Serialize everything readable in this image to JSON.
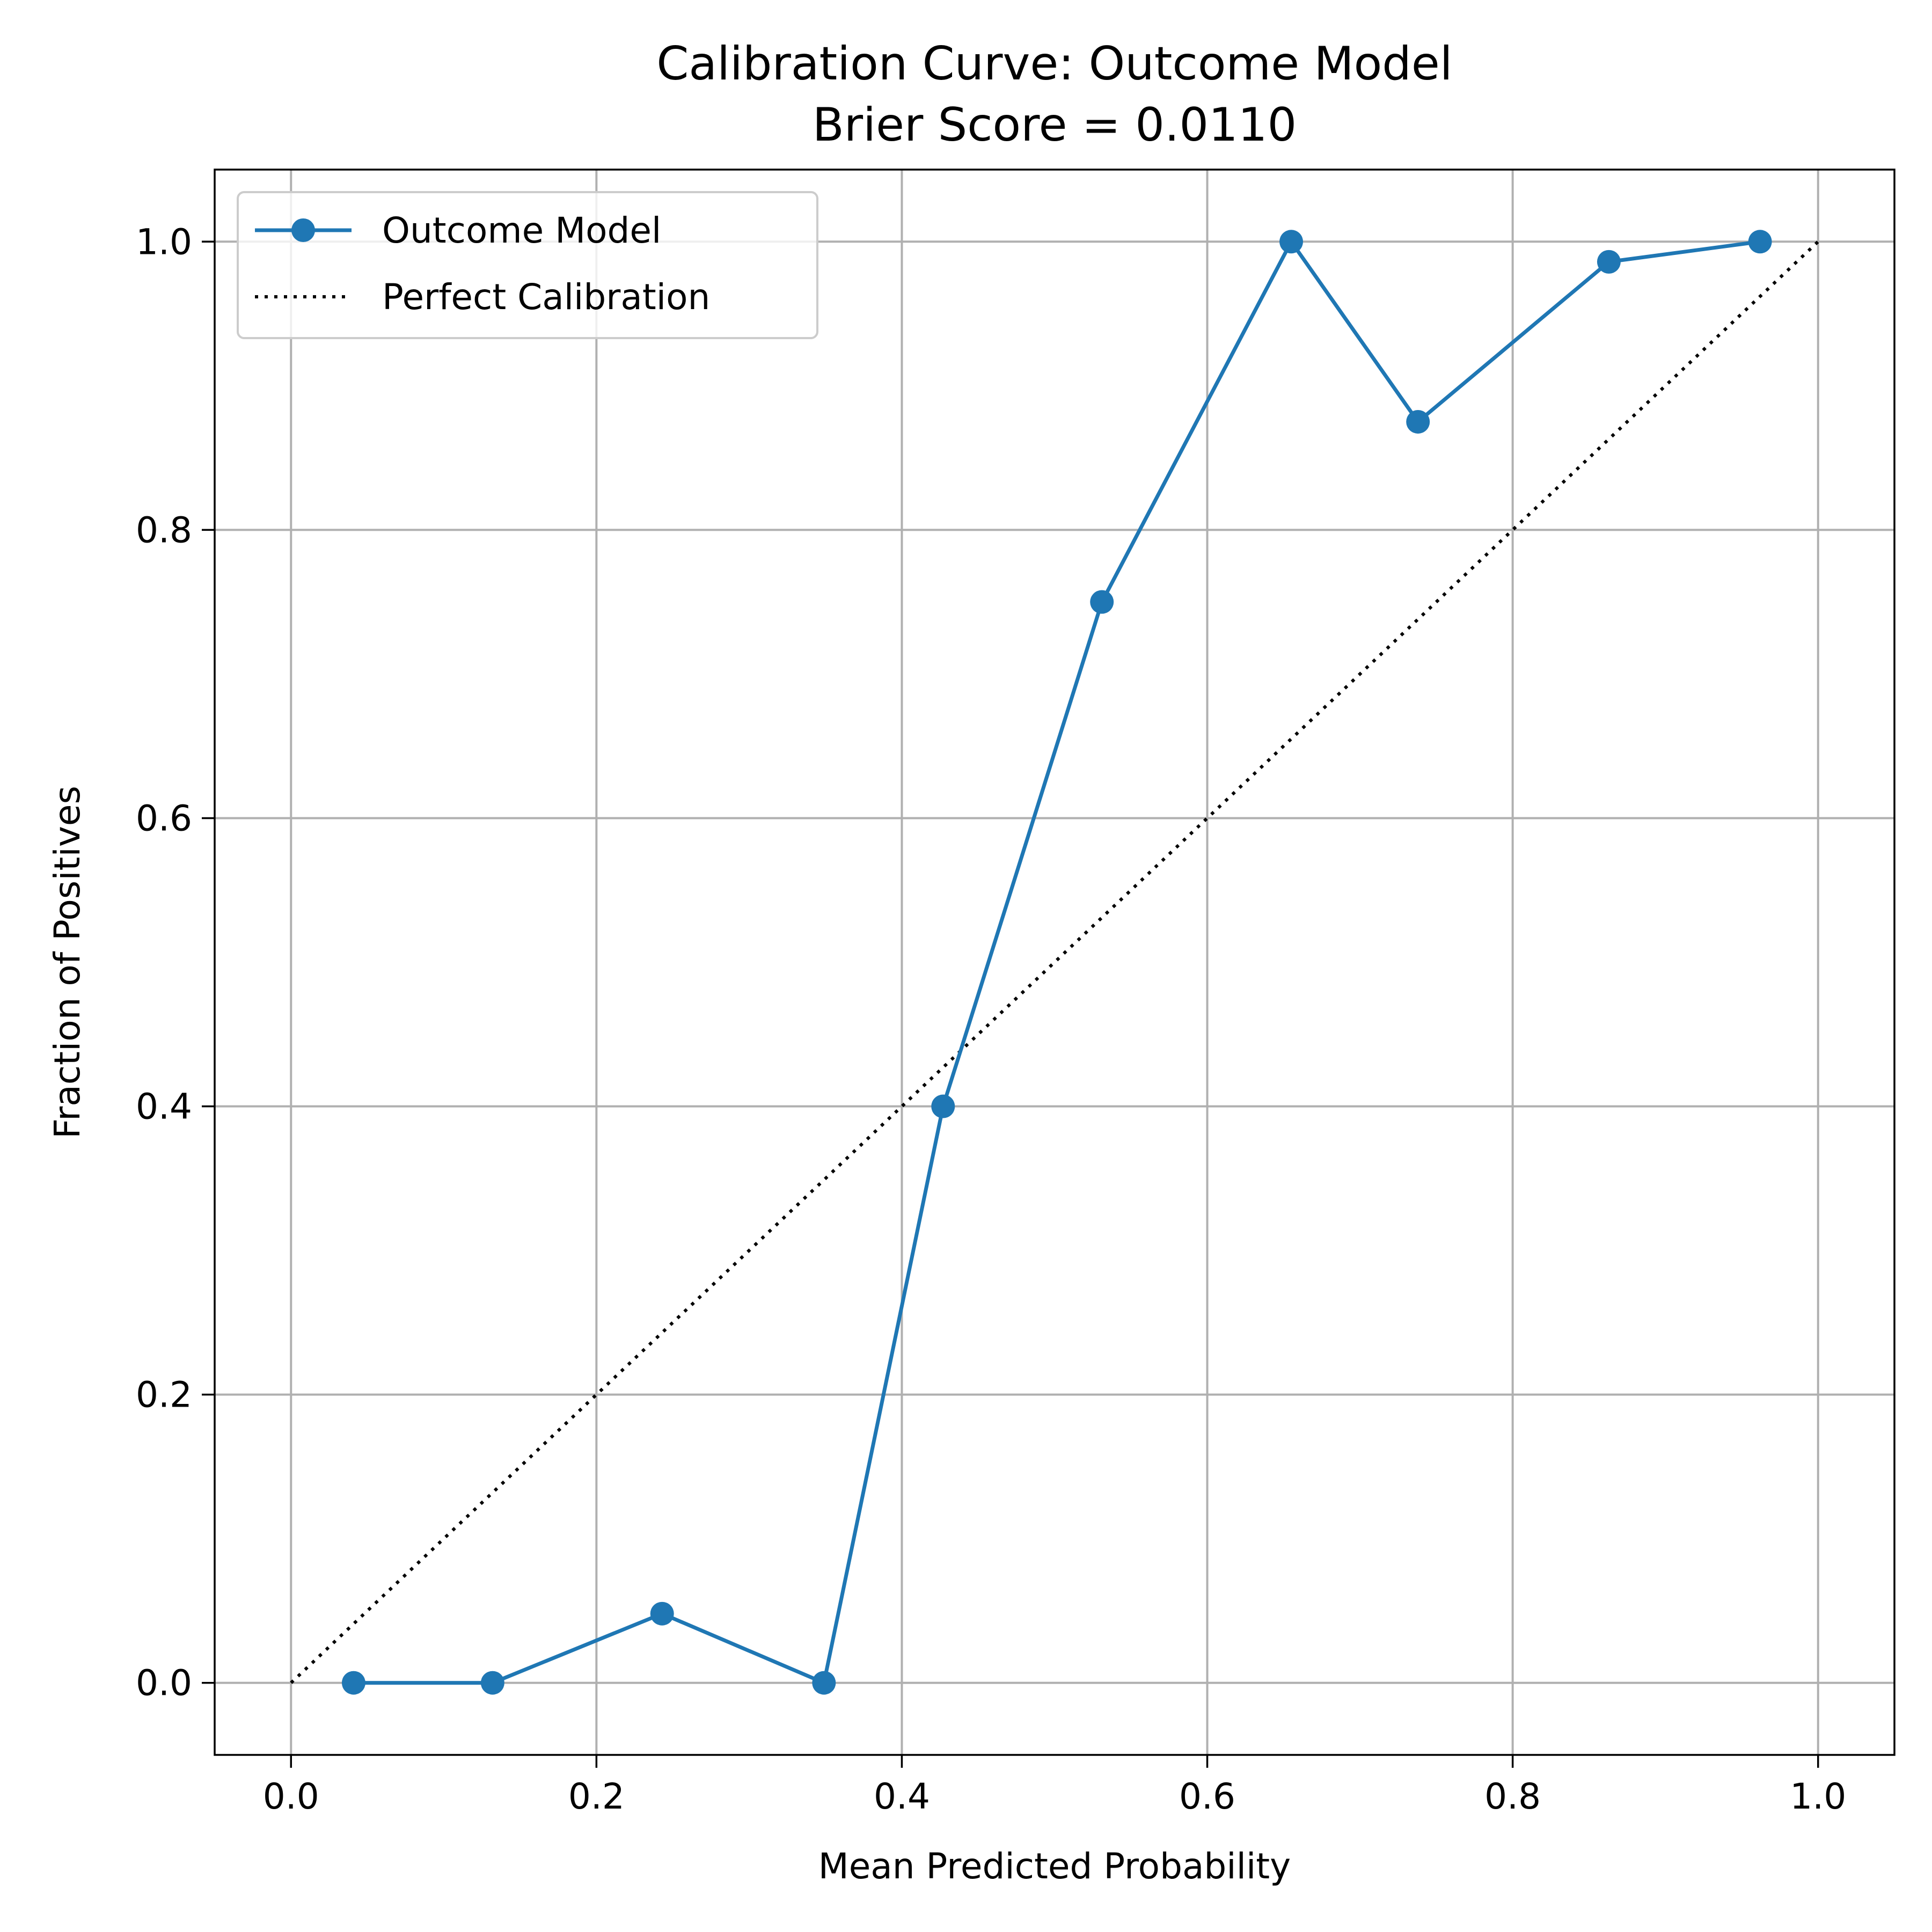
{
  "chart_data": {
    "type": "line",
    "title": "Calibration Curve: Outcome Model",
    "subtitle": "Brier Score = 0.0110",
    "xlabel": "Mean Predicted Probability",
    "ylabel": "Fraction of Positives",
    "xlim": [
      -0.05,
      1.05
    ],
    "ylim": [
      -0.05,
      1.05
    ],
    "xticks": [
      0.0,
      0.2,
      0.4,
      0.6,
      0.8,
      1.0
    ],
    "xtick_labels": [
      "0.0",
      "0.2",
      "0.4",
      "0.6",
      "0.8",
      "1.0"
    ],
    "yticks": [
      0.0,
      0.2,
      0.4,
      0.6,
      0.8,
      1.0
    ],
    "ytick_labels": [
      "0.0",
      "0.2",
      "0.4",
      "0.6",
      "0.8",
      "1.0"
    ],
    "grid": true,
    "legend_position": "top-left",
    "series": [
      {
        "name": "Outcome Model",
        "color": "#1f77b4",
        "style": "solid",
        "marker": "circle",
        "x": [
          0.041,
          0.132,
          0.243,
          0.349,
          0.427,
          0.531,
          0.655,
          0.738,
          0.863,
          0.962
        ],
        "y": [
          0.0,
          0.0,
          0.048,
          0.0,
          0.4,
          0.75,
          1.0,
          0.875,
          0.986,
          1.0
        ]
      },
      {
        "name": "Perfect Calibration",
        "color": "#000000",
        "style": "dotted",
        "marker": "none",
        "x": [
          0.0,
          1.0
        ],
        "y": [
          0.0,
          1.0
        ]
      }
    ]
  }
}
